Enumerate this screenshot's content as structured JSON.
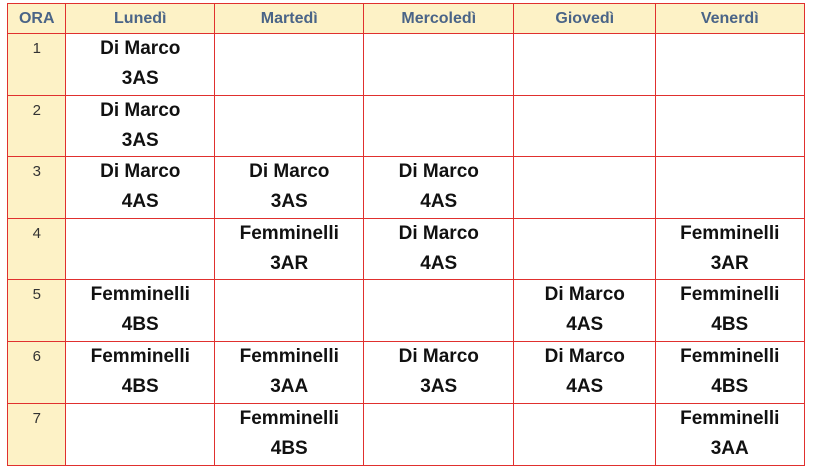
{
  "table": {
    "header": [
      "ORA",
      "Lunedì",
      "Martedì",
      "Mercoledì",
      "Giovedì",
      "Venerdì"
    ],
    "rows": [
      {
        "ora": "1",
        "cells": [
          {
            "name": "Di Marco",
            "class": "3AS"
          },
          null,
          null,
          null,
          null
        ]
      },
      {
        "ora": "2",
        "cells": [
          {
            "name": "Di Marco",
            "class": "3AS"
          },
          null,
          null,
          null,
          null
        ]
      },
      {
        "ora": "3",
        "cells": [
          {
            "name": "Di Marco",
            "class": "4AS"
          },
          {
            "name": "Di Marco",
            "class": "3AS"
          },
          {
            "name": "Di Marco",
            "class": "4AS"
          },
          null,
          null
        ]
      },
      {
        "ora": "4",
        "cells": [
          null,
          {
            "name": "Femminelli",
            "class": "3AR"
          },
          {
            "name": "Di Marco",
            "class": "4AS"
          },
          null,
          {
            "name": "Femminelli",
            "class": "3AR"
          }
        ]
      },
      {
        "ora": "5",
        "cells": [
          {
            "name": "Femminelli",
            "class": "4BS"
          },
          null,
          null,
          {
            "name": "Di Marco",
            "class": "4AS"
          },
          {
            "name": "Femminelli",
            "class": "4BS"
          }
        ]
      },
      {
        "ora": "6",
        "cells": [
          {
            "name": "Femminelli",
            "class": "4BS"
          },
          {
            "name": "Femminelli",
            "class": "3AA"
          },
          {
            "name": "Di Marco",
            "class": "3AS"
          },
          {
            "name": "Di Marco",
            "class": "4AS"
          },
          {
            "name": "Femminelli",
            "class": "4BS"
          }
        ]
      },
      {
        "ora": "7",
        "cells": [
          null,
          {
            "name": "Femminelli",
            "class": "4BS"
          },
          null,
          null,
          {
            "name": "Femminelli",
            "class": "3AA"
          }
        ]
      }
    ]
  }
}
